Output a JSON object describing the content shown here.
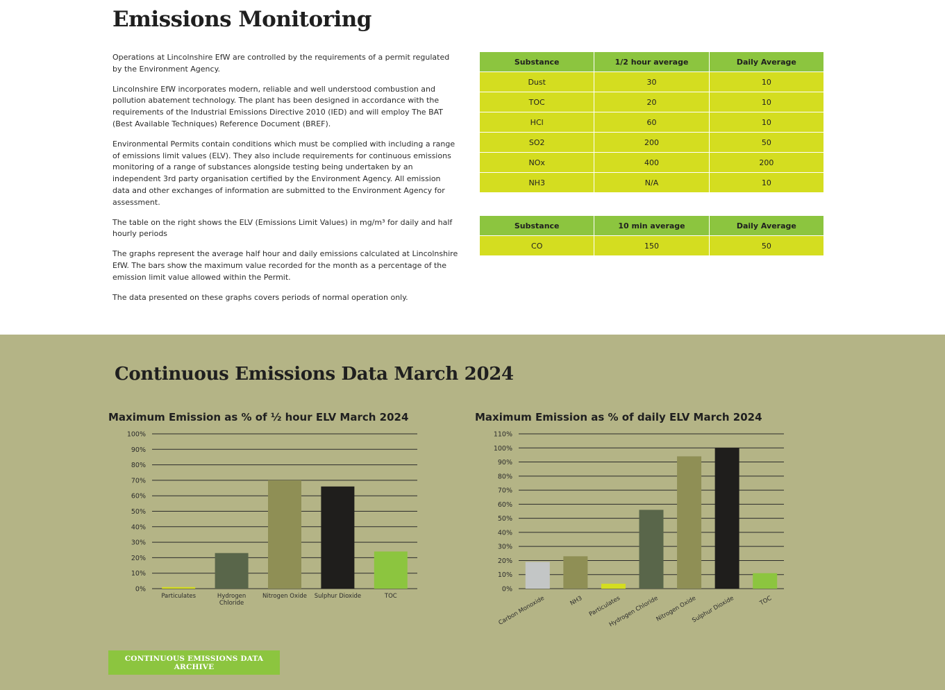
{
  "page": {
    "title": "Emissions Monitoring",
    "paragraphs": [
      "Operations at Lincolnshire EfW are controlled by the requirements of a permit regulated by the Environment Agency.",
      "Lincolnshire EfW incorporates modern, reliable and well understood combustion and pollution abatement technology. The plant has been designed in accordance with the requirements of the Industrial Emissions Directive 2010 (IED) and will employ The BAT (Best Available Techniques) Reference Document (BREF).",
      "Environmental Permits contain conditions which must be complied with including a range of emissions limit values (ELV). They also include requirements for continuous emissions monitoring of a range of substances alongside testing being undertaken by an independent 3rd party organisation certified by the Environment Agency. All emission data and other exchanges of information are submitted to the Environment Agency for assessment.",
      "The table on the right shows the ELV (Emissions Limit Values) in mg/m³ for daily and half hourly periods",
      "The graphs represent the average half hour and daily emissions calculated at Lincolnshire EfW. The bars show the maximum value recorded for the month as a percentage of the emission limit value allowed within the Permit.",
      "The data presented on these graphs covers periods of normal operation only."
    ]
  },
  "tables": [
    {
      "headers": [
        "Substance",
        "1/2 hour average",
        "Daily Average"
      ],
      "rows": [
        [
          "Dust",
          "30",
          "10"
        ],
        [
          "TOC",
          "20",
          "10"
        ],
        [
          "HCl",
          "60",
          "10"
        ],
        [
          "SO2",
          "200",
          "50"
        ],
        [
          "NOx",
          "400",
          "200"
        ],
        [
          "NH3",
          "N/A",
          "10"
        ]
      ]
    },
    {
      "headers": [
        "Substance",
        "10 min average",
        "Daily Average"
      ],
      "rows": [
        [
          "CO",
          "150",
          "50"
        ]
      ]
    }
  ],
  "section": {
    "title": "Continuous Emissions Data March 2024",
    "archive_button": "CONTINUOUS EMISSIONS DATA ARCHIVE"
  },
  "colors": {
    "header_green": "#8cc53f",
    "cell_yellow": "#d4dd20",
    "section_bg": "#b4b486",
    "grid": "#2b2b2b"
  },
  "chart_data": [
    {
      "type": "bar",
      "title": "Maximum Emission as % of ½ hour ELV March 2024",
      "categories": [
        "Particulates",
        "Hydrogen Chloride",
        "Nitrogen Oxide",
        "Sulphur Dioxide",
        "TOC"
      ],
      "values": [
        1,
        23,
        70,
        66,
        24
      ],
      "colors": [
        "#d4dd20",
        "#59664a",
        "#8f8f55",
        "#1f1e1c",
        "#8cc53f"
      ],
      "ylim": [
        0,
        100
      ],
      "yticks": [
        0,
        10,
        20,
        30,
        40,
        50,
        60,
        70,
        80,
        90,
        100
      ],
      "unit": "%",
      "grid": true,
      "legend": "none"
    },
    {
      "type": "bar",
      "title": "Maximum Emission as % of daily ELV March 2024",
      "categories": [
        "Carbon Monoxide",
        "NH3",
        "Particulates",
        "Hydrogen Chloride",
        "Nitrogen Oxide",
        "Sulphur Dioxide",
        "TOC"
      ],
      "values": [
        19,
        23,
        3.5,
        56,
        94,
        100,
        11
      ],
      "colors": [
        "#c3c6c6",
        "#8f8f55",
        "#d4dd20",
        "#59664a",
        "#8f8f55",
        "#1f1e1c",
        "#8cc53f"
      ],
      "ylim": [
        0,
        110
      ],
      "yticks": [
        0,
        10,
        20,
        30,
        40,
        50,
        60,
        70,
        80,
        90,
        100,
        110
      ],
      "unit": "%",
      "grid": true,
      "legend": "none"
    }
  ]
}
